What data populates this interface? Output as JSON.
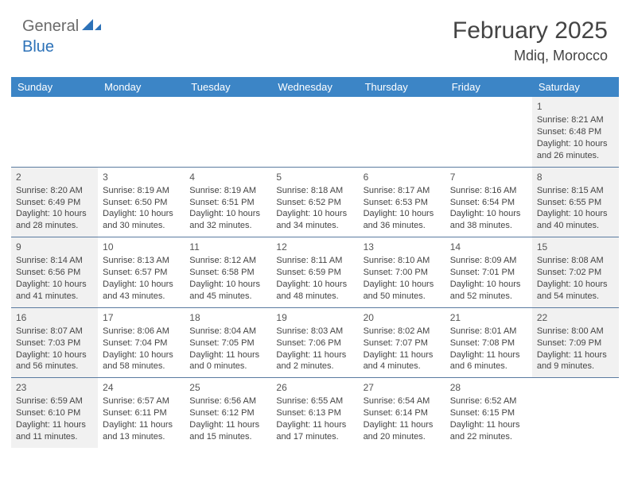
{
  "brand": {
    "part1": "General",
    "part2": "Blue"
  },
  "title": {
    "month": "February 2025",
    "location": "Mdiq, Morocco"
  },
  "style": {
    "header_bg": "#3c85c6",
    "header_text": "#ffffff",
    "shaded_bg": "#f1f1f1",
    "row_border": "#5a7ba0",
    "page_bg": "#ffffff",
    "title_fontsize": 30,
    "location_fontsize": 18,
    "weekday_fontsize": 13,
    "cell_fontsize": 11
  },
  "weekdays": [
    "Sunday",
    "Monday",
    "Tuesday",
    "Wednesday",
    "Thursday",
    "Friday",
    "Saturday"
  ],
  "weeks": [
    [
      {
        "empty": true
      },
      {
        "empty": true
      },
      {
        "empty": true
      },
      {
        "empty": true
      },
      {
        "empty": true
      },
      {
        "empty": true
      },
      {
        "day": "1",
        "shaded": true,
        "sunrise": "Sunrise: 8:21 AM",
        "sunset": "Sunset: 6:48 PM",
        "daylight1": "Daylight: 10 hours",
        "daylight2": "and 26 minutes."
      }
    ],
    [
      {
        "day": "2",
        "shaded": true,
        "sunrise": "Sunrise: 8:20 AM",
        "sunset": "Sunset: 6:49 PM",
        "daylight1": "Daylight: 10 hours",
        "daylight2": "and 28 minutes."
      },
      {
        "day": "3",
        "shaded": false,
        "sunrise": "Sunrise: 8:19 AM",
        "sunset": "Sunset: 6:50 PM",
        "daylight1": "Daylight: 10 hours",
        "daylight2": "and 30 minutes."
      },
      {
        "day": "4",
        "shaded": false,
        "sunrise": "Sunrise: 8:19 AM",
        "sunset": "Sunset: 6:51 PM",
        "daylight1": "Daylight: 10 hours",
        "daylight2": "and 32 minutes."
      },
      {
        "day": "5",
        "shaded": false,
        "sunrise": "Sunrise: 8:18 AM",
        "sunset": "Sunset: 6:52 PM",
        "daylight1": "Daylight: 10 hours",
        "daylight2": "and 34 minutes."
      },
      {
        "day": "6",
        "shaded": false,
        "sunrise": "Sunrise: 8:17 AM",
        "sunset": "Sunset: 6:53 PM",
        "daylight1": "Daylight: 10 hours",
        "daylight2": "and 36 minutes."
      },
      {
        "day": "7",
        "shaded": false,
        "sunrise": "Sunrise: 8:16 AM",
        "sunset": "Sunset: 6:54 PM",
        "daylight1": "Daylight: 10 hours",
        "daylight2": "and 38 minutes."
      },
      {
        "day": "8",
        "shaded": true,
        "sunrise": "Sunrise: 8:15 AM",
        "sunset": "Sunset: 6:55 PM",
        "daylight1": "Daylight: 10 hours",
        "daylight2": "and 40 minutes."
      }
    ],
    [
      {
        "day": "9",
        "shaded": true,
        "sunrise": "Sunrise: 8:14 AM",
        "sunset": "Sunset: 6:56 PM",
        "daylight1": "Daylight: 10 hours",
        "daylight2": "and 41 minutes."
      },
      {
        "day": "10",
        "shaded": false,
        "sunrise": "Sunrise: 8:13 AM",
        "sunset": "Sunset: 6:57 PM",
        "daylight1": "Daylight: 10 hours",
        "daylight2": "and 43 minutes."
      },
      {
        "day": "11",
        "shaded": false,
        "sunrise": "Sunrise: 8:12 AM",
        "sunset": "Sunset: 6:58 PM",
        "daylight1": "Daylight: 10 hours",
        "daylight2": "and 45 minutes."
      },
      {
        "day": "12",
        "shaded": false,
        "sunrise": "Sunrise: 8:11 AM",
        "sunset": "Sunset: 6:59 PM",
        "daylight1": "Daylight: 10 hours",
        "daylight2": "and 48 minutes."
      },
      {
        "day": "13",
        "shaded": false,
        "sunrise": "Sunrise: 8:10 AM",
        "sunset": "Sunset: 7:00 PM",
        "daylight1": "Daylight: 10 hours",
        "daylight2": "and 50 minutes."
      },
      {
        "day": "14",
        "shaded": false,
        "sunrise": "Sunrise: 8:09 AM",
        "sunset": "Sunset: 7:01 PM",
        "daylight1": "Daylight: 10 hours",
        "daylight2": "and 52 minutes."
      },
      {
        "day": "15",
        "shaded": true,
        "sunrise": "Sunrise: 8:08 AM",
        "sunset": "Sunset: 7:02 PM",
        "daylight1": "Daylight: 10 hours",
        "daylight2": "and 54 minutes."
      }
    ],
    [
      {
        "day": "16",
        "shaded": true,
        "sunrise": "Sunrise: 8:07 AM",
        "sunset": "Sunset: 7:03 PM",
        "daylight1": "Daylight: 10 hours",
        "daylight2": "and 56 minutes."
      },
      {
        "day": "17",
        "shaded": false,
        "sunrise": "Sunrise: 8:06 AM",
        "sunset": "Sunset: 7:04 PM",
        "daylight1": "Daylight: 10 hours",
        "daylight2": "and 58 minutes."
      },
      {
        "day": "18",
        "shaded": false,
        "sunrise": "Sunrise: 8:04 AM",
        "sunset": "Sunset: 7:05 PM",
        "daylight1": "Daylight: 11 hours",
        "daylight2": "and 0 minutes."
      },
      {
        "day": "19",
        "shaded": false,
        "sunrise": "Sunrise: 8:03 AM",
        "sunset": "Sunset: 7:06 PM",
        "daylight1": "Daylight: 11 hours",
        "daylight2": "and 2 minutes."
      },
      {
        "day": "20",
        "shaded": false,
        "sunrise": "Sunrise: 8:02 AM",
        "sunset": "Sunset: 7:07 PM",
        "daylight1": "Daylight: 11 hours",
        "daylight2": "and 4 minutes."
      },
      {
        "day": "21",
        "shaded": false,
        "sunrise": "Sunrise: 8:01 AM",
        "sunset": "Sunset: 7:08 PM",
        "daylight1": "Daylight: 11 hours",
        "daylight2": "and 6 minutes."
      },
      {
        "day": "22",
        "shaded": true,
        "sunrise": "Sunrise: 8:00 AM",
        "sunset": "Sunset: 7:09 PM",
        "daylight1": "Daylight: 11 hours",
        "daylight2": "and 9 minutes."
      }
    ],
    [
      {
        "day": "23",
        "shaded": true,
        "sunrise": "Sunrise: 6:59 AM",
        "sunset": "Sunset: 6:10 PM",
        "daylight1": "Daylight: 11 hours",
        "daylight2": "and 11 minutes."
      },
      {
        "day": "24",
        "shaded": false,
        "sunrise": "Sunrise: 6:57 AM",
        "sunset": "Sunset: 6:11 PM",
        "daylight1": "Daylight: 11 hours",
        "daylight2": "and 13 minutes."
      },
      {
        "day": "25",
        "shaded": false,
        "sunrise": "Sunrise: 6:56 AM",
        "sunset": "Sunset: 6:12 PM",
        "daylight1": "Daylight: 11 hours",
        "daylight2": "and 15 minutes."
      },
      {
        "day": "26",
        "shaded": false,
        "sunrise": "Sunrise: 6:55 AM",
        "sunset": "Sunset: 6:13 PM",
        "daylight1": "Daylight: 11 hours",
        "daylight2": "and 17 minutes."
      },
      {
        "day": "27",
        "shaded": false,
        "sunrise": "Sunrise: 6:54 AM",
        "sunset": "Sunset: 6:14 PM",
        "daylight1": "Daylight: 11 hours",
        "daylight2": "and 20 minutes."
      },
      {
        "day": "28",
        "shaded": false,
        "sunrise": "Sunrise: 6:52 AM",
        "sunset": "Sunset: 6:15 PM",
        "daylight1": "Daylight: 11 hours",
        "daylight2": "and 22 minutes."
      },
      {
        "empty": true
      }
    ]
  ]
}
